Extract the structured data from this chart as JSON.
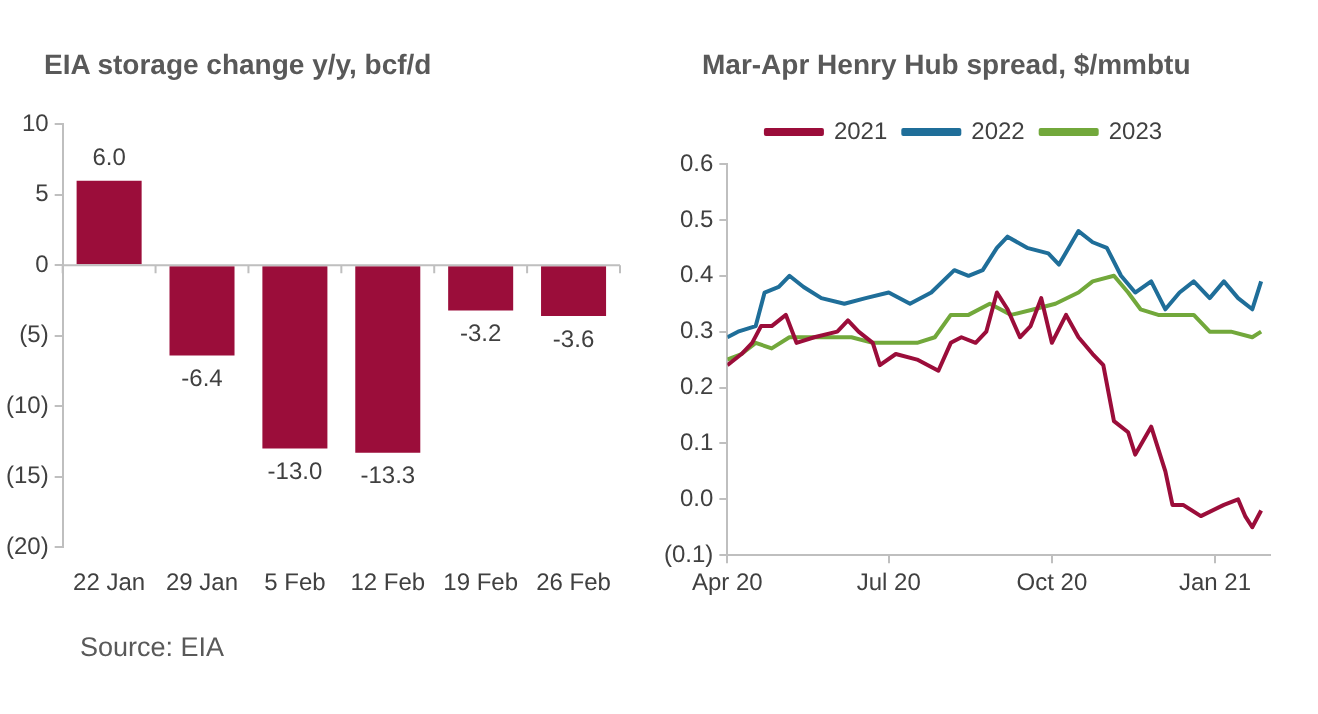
{
  "chart_data": [
    {
      "type": "bar",
      "title": "EIA storage change y/y, bcf/d",
      "categories": [
        "22 Jan",
        "29 Jan",
        "5 Feb",
        "12 Feb",
        "19 Feb",
        "26 Feb"
      ],
      "values": [
        6.0,
        -6.4,
        -13.0,
        -13.3,
        -3.2,
        -3.6
      ],
      "value_labels": [
        "6.0",
        "-6.4",
        "-13.0",
        "-13.3",
        "-3.2",
        "-3.6"
      ],
      "color": "#9b0d3a",
      "ylim": [
        -20,
        10
      ],
      "yticks": [
        {
          "value": -20,
          "label": "(20)"
        },
        {
          "value": -15,
          "label": "(15)"
        },
        {
          "value": -10,
          "label": "(10)"
        },
        {
          "value": -5,
          "label": "(5)"
        },
        0,
        5,
        10
      ],
      "annotations": [
        "Source: EIA"
      ]
    },
    {
      "type": "line",
      "title": "Mar-Apr Henry Hub spread, $/mmbtu",
      "legend": "top",
      "grid": false,
      "marker": "none",
      "line_style": "solid",
      "xlim": [
        "2020-04-01",
        "2021-02-01"
      ],
      "xticks": [
        {
          "value": "2020-04-01",
          "label": "Apr 20"
        },
        {
          "value": "2020-07-01",
          "label": "Jul 20"
        },
        {
          "value": "2020-10-01",
          "label": "Oct 20"
        },
        {
          "value": "2021-01-01",
          "label": "Jan 21"
        }
      ],
      "ylim": [
        -0.1,
        0.6
      ],
      "yticks": [
        {
          "value": -0.1,
          "label": "(0.1)"
        },
        {
          "value": 0,
          "label": "0.0"
        },
        0.1,
        0.2,
        0.3,
        0.4,
        0.5,
        0.6
      ],
      "series": [
        {
          "name": "2021",
          "color": "#9b0d3a",
          "x": [
            "2020-04-01",
            "2020-04-09",
            "2020-04-15",
            "2020-04-20",
            "2020-04-26",
            "2020-05-04",
            "2020-05-10",
            "2020-05-20",
            "2020-06-02",
            "2020-06-08",
            "2020-06-14",
            "2020-06-22",
            "2020-06-26",
            "2020-07-05",
            "2020-07-17",
            "2020-07-29",
            "2020-08-05",
            "2020-08-11",
            "2020-08-19",
            "2020-08-25",
            "2020-08-31",
            "2020-09-06",
            "2020-09-13",
            "2020-09-19",
            "2020-09-25",
            "2020-10-01",
            "2020-10-09",
            "2020-10-16",
            "2020-10-24",
            "2020-10-30",
            "2020-11-05",
            "2020-11-13",
            "2020-11-17",
            "2020-11-26",
            "2020-12-04",
            "2020-12-08",
            "2020-12-14",
            "2020-12-24",
            "2021-01-06",
            "2021-01-14",
            "2021-01-18",
            "2021-01-22",
            "2021-01-27"
          ],
          "values": [
            0.24,
            0.26,
            0.28,
            0.31,
            0.31,
            0.33,
            0.28,
            0.29,
            0.3,
            0.32,
            0.3,
            0.28,
            0.24,
            0.26,
            0.25,
            0.23,
            0.28,
            0.29,
            0.28,
            0.3,
            0.37,
            0.34,
            0.29,
            0.31,
            0.36,
            0.28,
            0.33,
            0.29,
            0.26,
            0.24,
            0.14,
            0.12,
            0.08,
            0.13,
            0.05,
            -0.01,
            -0.01,
            -0.03,
            -0.01,
            0.0,
            -0.03,
            -0.05,
            -0.02
          ]
        },
        {
          "name": "2022",
          "color": "#1f6e99",
          "x": [
            "2020-04-01",
            "2020-04-07",
            "2020-04-17",
            "2020-04-22",
            "2020-04-30",
            "2020-05-06",
            "2020-05-14",
            "2020-05-24",
            "2020-06-06",
            "2020-06-18",
            "2020-07-01",
            "2020-07-13",
            "2020-07-25",
            "2020-08-07",
            "2020-08-15",
            "2020-08-23",
            "2020-08-31",
            "2020-09-06",
            "2020-09-17",
            "2020-09-29",
            "2020-10-05",
            "2020-10-16",
            "2020-10-24",
            "2020-11-01",
            "2020-11-09",
            "2020-11-17",
            "2020-11-26",
            "2020-12-04",
            "2020-12-12",
            "2020-12-20",
            "2020-12-29",
            "2021-01-06",
            "2021-01-14",
            "2021-01-22",
            "2021-01-27"
          ],
          "values": [
            0.29,
            0.3,
            0.31,
            0.37,
            0.38,
            0.4,
            0.38,
            0.36,
            0.35,
            0.36,
            0.37,
            0.35,
            0.37,
            0.41,
            0.4,
            0.41,
            0.45,
            0.47,
            0.45,
            0.44,
            0.42,
            0.48,
            0.46,
            0.45,
            0.4,
            0.37,
            0.39,
            0.34,
            0.37,
            0.39,
            0.36,
            0.39,
            0.36,
            0.34,
            0.39
          ]
        },
        {
          "name": "2023",
          "color": "#72a83b",
          "x": [
            "2020-04-01",
            "2020-04-09",
            "2020-04-17",
            "2020-04-26",
            "2020-05-06",
            "2020-05-16",
            "2020-05-29",
            "2020-06-10",
            "2020-06-22",
            "2020-07-05",
            "2020-07-17",
            "2020-07-27",
            "2020-08-05",
            "2020-08-15",
            "2020-08-27",
            "2020-09-08",
            "2020-09-21",
            "2020-10-03",
            "2020-10-16",
            "2020-10-24",
            "2020-11-05",
            "2020-11-13",
            "2020-11-20",
            "2020-11-30",
            "2020-12-12",
            "2020-12-20",
            "2020-12-29",
            "2021-01-10",
            "2021-01-22",
            "2021-01-27"
          ],
          "values": [
            0.25,
            0.26,
            0.28,
            0.27,
            0.29,
            0.29,
            0.29,
            0.29,
            0.28,
            0.28,
            0.28,
            0.29,
            0.33,
            0.33,
            0.35,
            0.33,
            0.34,
            0.35,
            0.37,
            0.39,
            0.4,
            0.37,
            0.34,
            0.33,
            0.33,
            0.33,
            0.3,
            0.3,
            0.29,
            0.3
          ]
        }
      ]
    }
  ]
}
